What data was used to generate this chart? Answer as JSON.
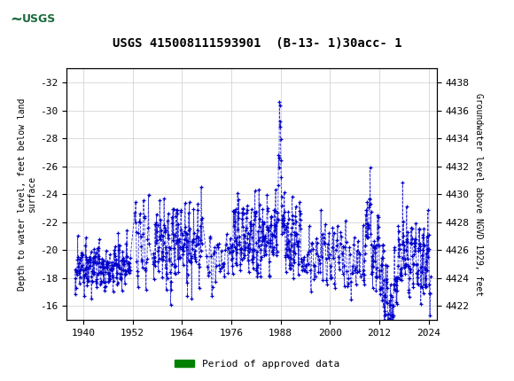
{
  "title": "USGS 415008111593901  (B-13- 1)30acc- 1",
  "header_bg_color": "#1a6b3c",
  "plot_bg_color": "#ffffff",
  "grid_color": "#cccccc",
  "line_color": "#0000cd",
  "dot_color": "#0000cd",
  "xlabel_ticks": [
    1940,
    1952,
    1964,
    1976,
    1988,
    2000,
    2012,
    2024
  ],
  "ylim_left": [
    -15,
    -33
  ],
  "yticks_left": [
    -16,
    -18,
    -20,
    -22,
    -24,
    -26,
    -28,
    -30,
    -32
  ],
  "ylim_right": [
    4439,
    4421
  ],
  "yticks_right": [
    4438,
    4436,
    4434,
    4432,
    4430,
    4428,
    4426,
    4424,
    4422
  ],
  "ylabel_left": "Depth to water level, feet below land\nsurface",
  "ylabel_right": "Groundwater level above NGVD 1929, feet",
  "legend_label": "Period of approved data",
  "legend_color": "#008000",
  "bar_color": "#008000",
  "xlim": [
    1936,
    2026
  ],
  "title_fontsize": 10,
  "tick_fontsize": 8,
  "ylabel_fontsize": 7
}
